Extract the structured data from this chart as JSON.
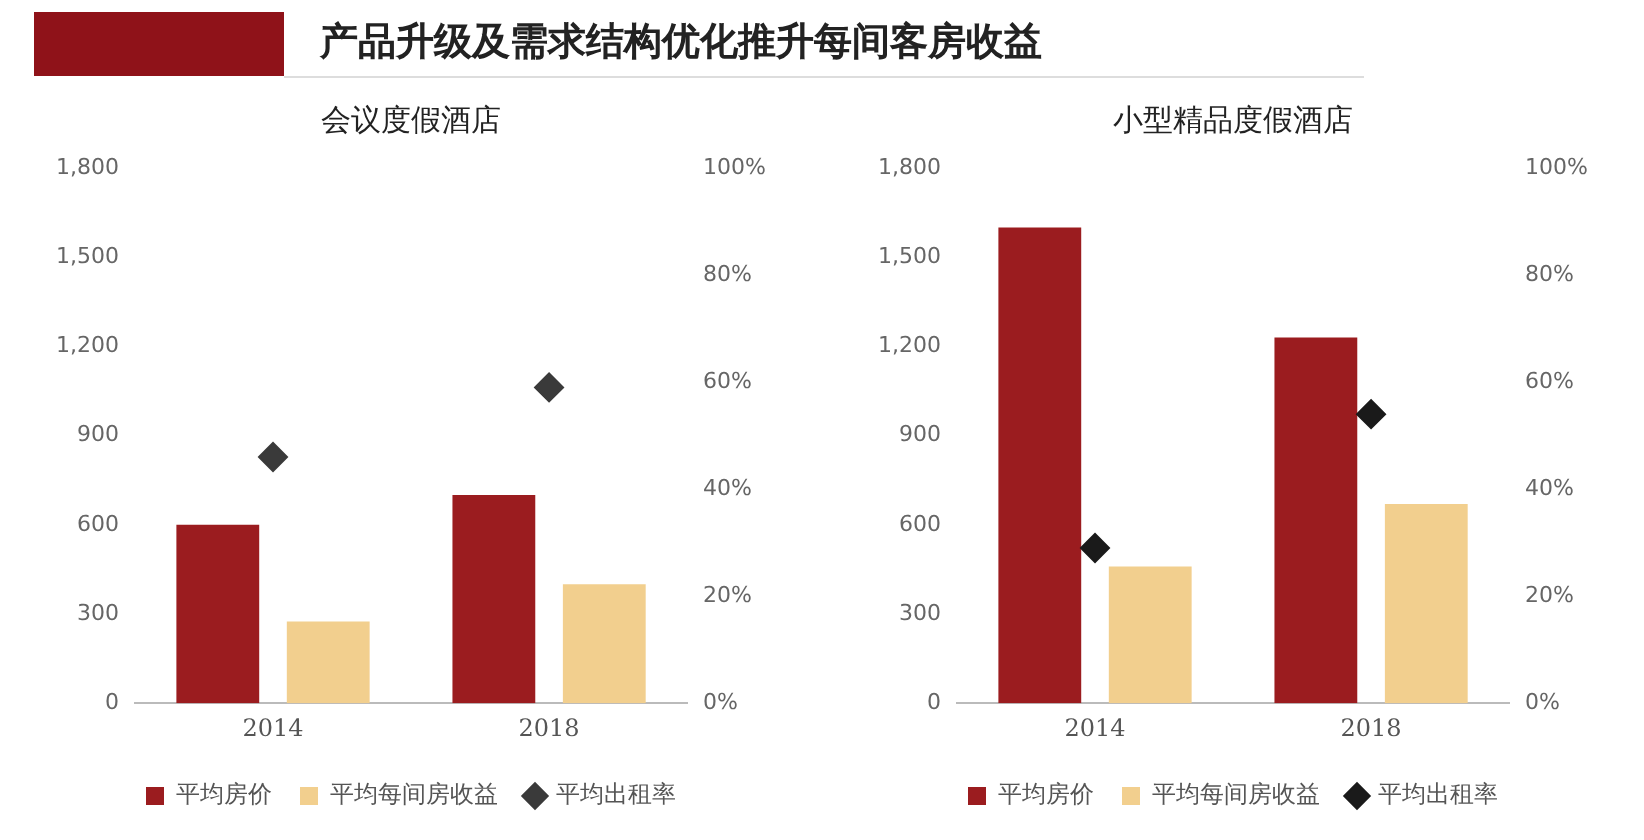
{
  "chart_data": [
    {
      "type": "bar",
      "title": "会议度假酒店",
      "annotations": [
        "产品升级及需求结构优化推升每间客房收益"
      ],
      "categories": [
        "2014",
        "2018"
      ],
      "series": [
        {
          "name": "平均房价",
          "color": "#9b1c1f",
          "values": [
            600,
            700
          ]
        },
        {
          "name": "平均每间房收益",
          "color": "#f2cf8e",
          "values": [
            275,
            400
          ]
        },
        {
          "name": "平均出租率",
          "type": "scatter",
          "axis": "y2",
          "color": "#3a3a3a",
          "marker": "diamond",
          "values": [
            46,
            59
          ]
        }
      ],
      "ylim": [
        0,
        1800
      ],
      "yticks": [
        0,
        300,
        600,
        900,
        {
          "value": 1200,
          "label": "1,200"
        },
        {
          "value": 1500,
          "label": "1,500"
        },
        {
          "value": 1800,
          "label": "1,800"
        }
      ],
      "y2lim": [
        0,
        100
      ],
      "y2ticks": [
        {
          "value": 0,
          "label": "0%"
        },
        {
          "value": 20,
          "label": "20%"
        },
        {
          "value": 40,
          "label": "40%"
        },
        {
          "value": 60,
          "label": "60%"
        },
        {
          "value": 80,
          "label": "80%"
        },
        {
          "value": 100,
          "label": "100%"
        }
      ],
      "grid": false,
      "legend": "bottom"
    },
    {
      "type": "bar",
      "title": "小型精品度假酒店",
      "categories": [
        "2014",
        "2018"
      ],
      "series": [
        {
          "name": "平均房价",
          "color": "#9b1c1f",
          "values": [
            1600,
            1230
          ]
        },
        {
          "name": "平均每间房收益",
          "color": "#f2cf8e",
          "values": [
            460,
            670
          ]
        },
        {
          "name": "平均出租率",
          "type": "scatter",
          "axis": "y2",
          "color": "#1a1a1a",
          "marker": "diamond",
          "values": [
            29,
            54
          ]
        }
      ],
      "ylim": [
        0,
        1800
      ],
      "yticks": [
        0,
        300,
        600,
        900,
        {
          "value": 1200,
          "label": "1,200"
        },
        {
          "value": 1500,
          "label": "1,500"
        },
        {
          "value": 1800,
          "label": "1,800"
        }
      ],
      "y2lim": [
        0,
        100
      ],
      "y2ticks": [
        {
          "value": 0,
          "label": "0%"
        },
        {
          "value": 20,
          "label": "20%"
        },
        {
          "value": 40,
          "label": "40%"
        },
        {
          "value": 60,
          "label": "60%"
        },
        {
          "value": 80,
          "label": "80%"
        },
        {
          "value": 100,
          "label": "100%"
        }
      ],
      "grid": false,
      "legend": "bottom"
    }
  ]
}
